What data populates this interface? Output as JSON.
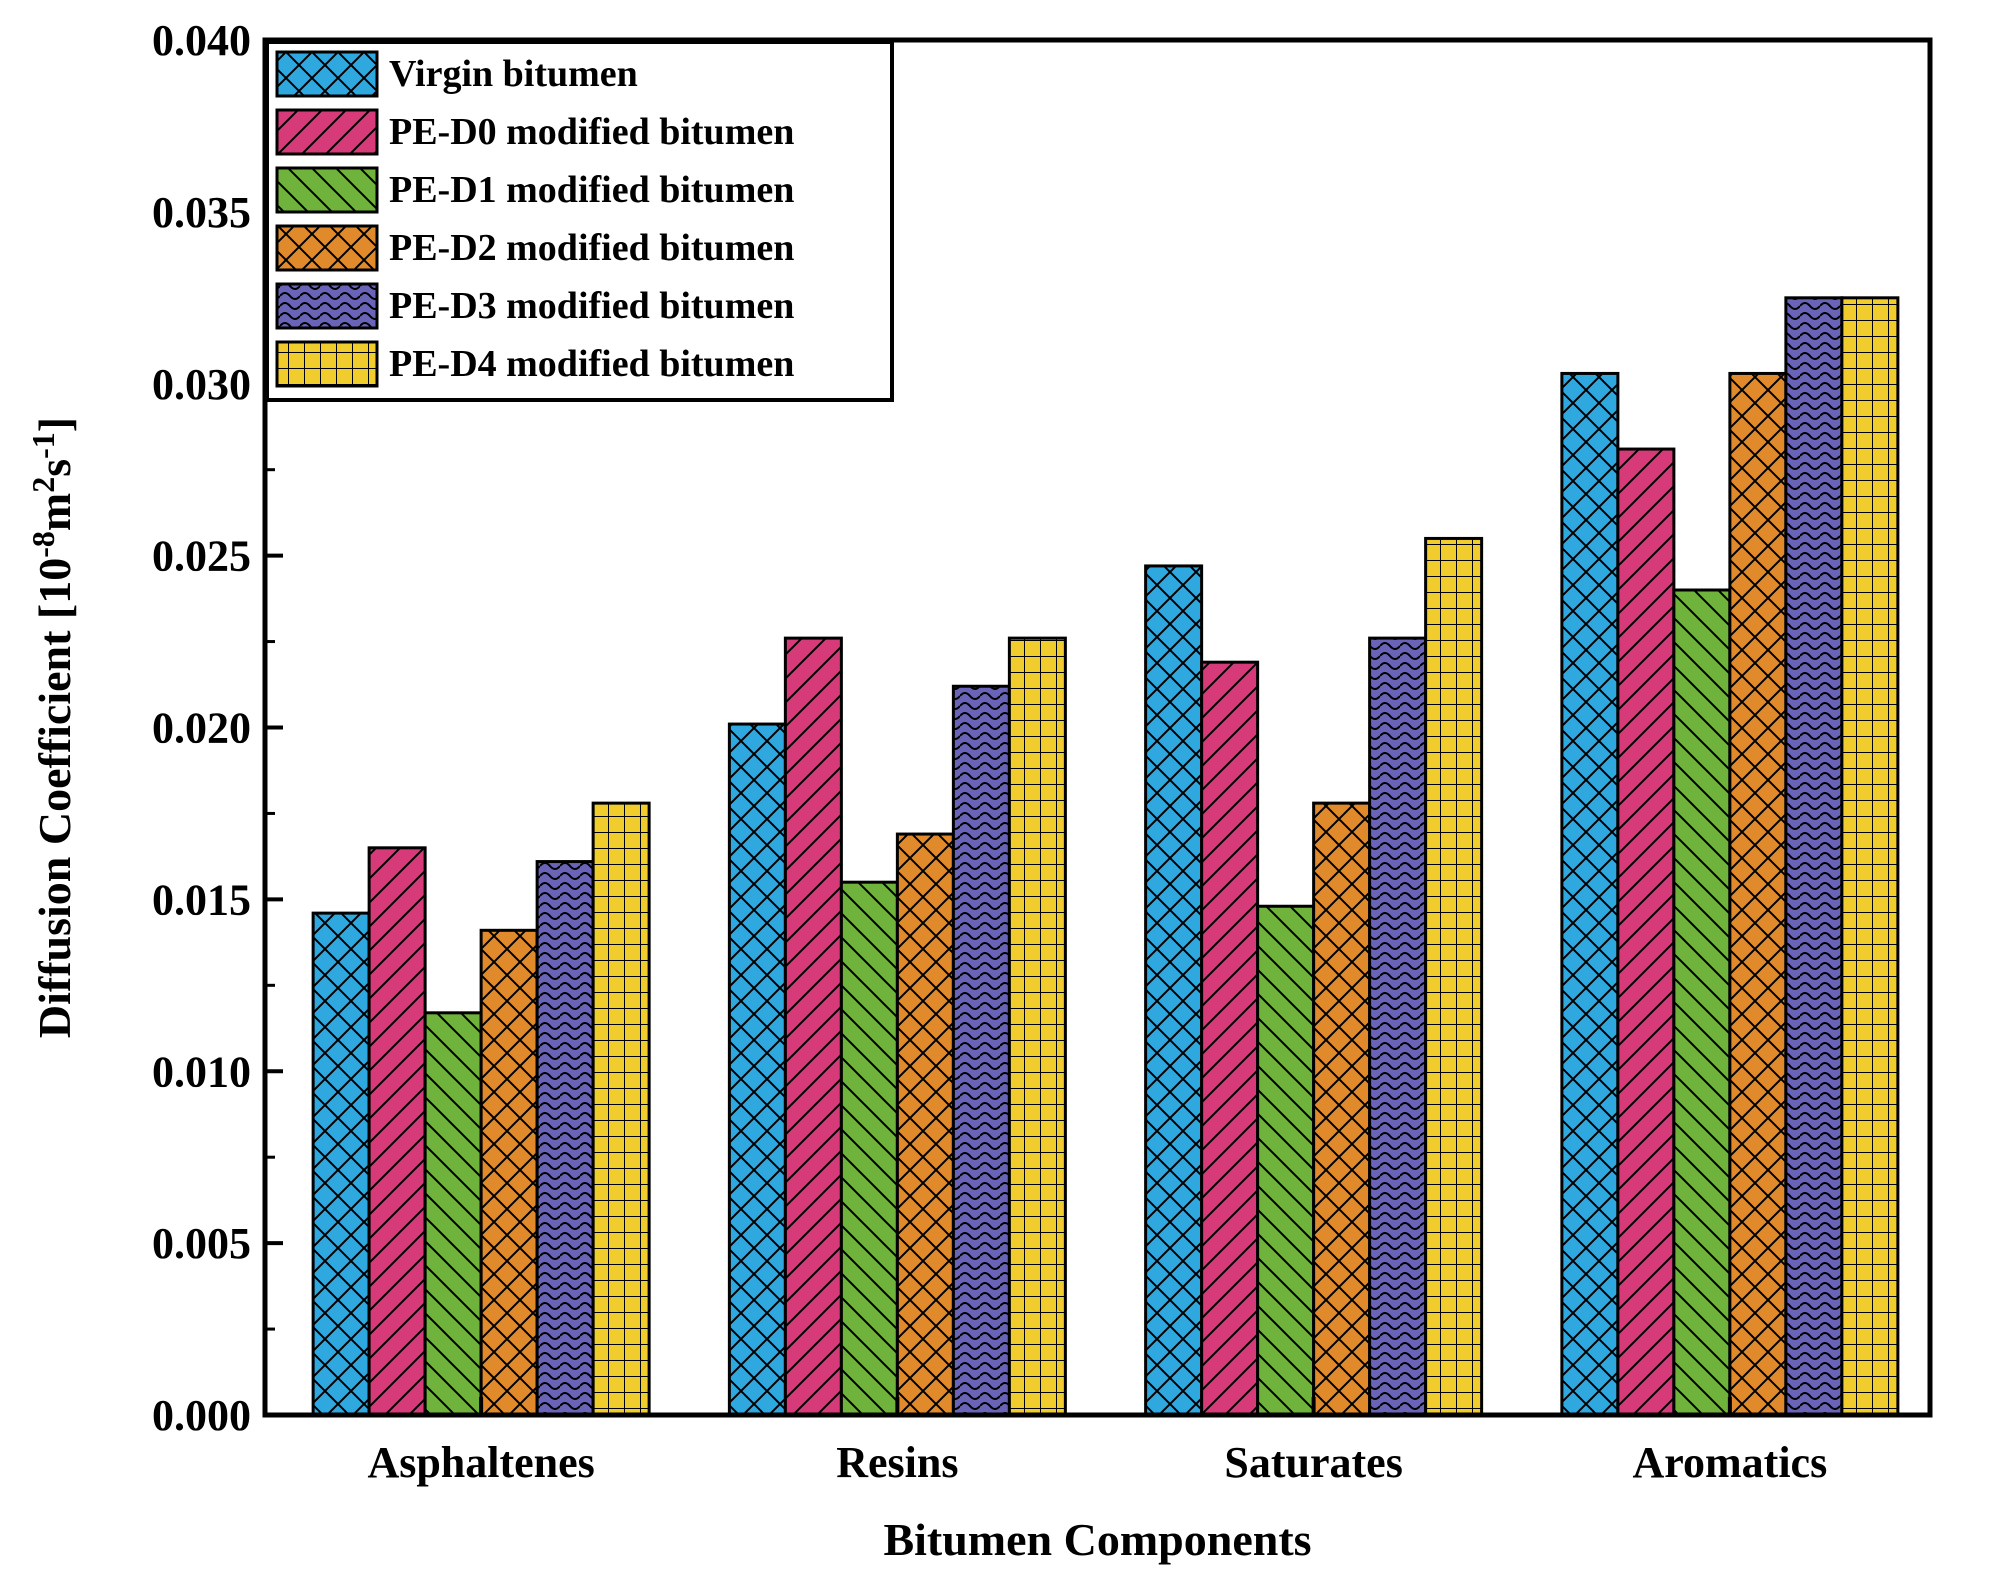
{
  "chart_data": {
    "type": "bar",
    "title": "",
    "xlabel": "Bitumen Components",
    "ylabel_main": "Diffusion Coefficient [10",
    "ylabel_sup1": "-8",
    "ylabel_mid": "m",
    "ylabel_sup2": "2",
    "ylabel_s": "s",
    "ylabel_sup3": "-1",
    "ylabel_end": "]",
    "ylim": [
      0,
      0.04
    ],
    "y_ticks": [
      "0.000",
      "0.005",
      "0.010",
      "0.015",
      "0.020",
      "0.025",
      "0.030",
      "0.035",
      "0.040"
    ],
    "categories": [
      "Asphaltenes",
      "Resins",
      "Saturates",
      "Aromatics"
    ],
    "legend_position": "top-left",
    "series": [
      {
        "name": "Virgin bitumen",
        "color": "#2fa8e0",
        "pattern": "crosshatch",
        "values": [
          0.0146,
          0.0201,
          0.0247,
          0.0303
        ]
      },
      {
        "name": "PE-D0 modified bitumen",
        "color": "#d63a78",
        "pattern": "forward-diagonal",
        "values": [
          0.0165,
          0.0226,
          0.0219,
          0.0281
        ]
      },
      {
        "name": "PE-D1 modified bitumen",
        "color": "#6fb23c",
        "pattern": "back-diagonal",
        "values": [
          0.0117,
          0.0155,
          0.0148,
          0.024
        ]
      },
      {
        "name": "PE-D2 modified bitumen",
        "color": "#e08a2c",
        "pattern": "crosshatch",
        "values": [
          0.0141,
          0.0169,
          0.0178,
          0.0303
        ]
      },
      {
        "name": "PE-D3 modified bitumen",
        "color": "#6a64b8",
        "pattern": "wave",
        "values": [
          0.0161,
          0.0212,
          0.0226,
          0.0325
        ]
      },
      {
        "name": "PE-D4 modified bitumen",
        "color": "#f0cc2c",
        "pattern": "grid",
        "values": [
          0.0178,
          0.0226,
          0.0255,
          0.0325
        ]
      }
    ]
  }
}
